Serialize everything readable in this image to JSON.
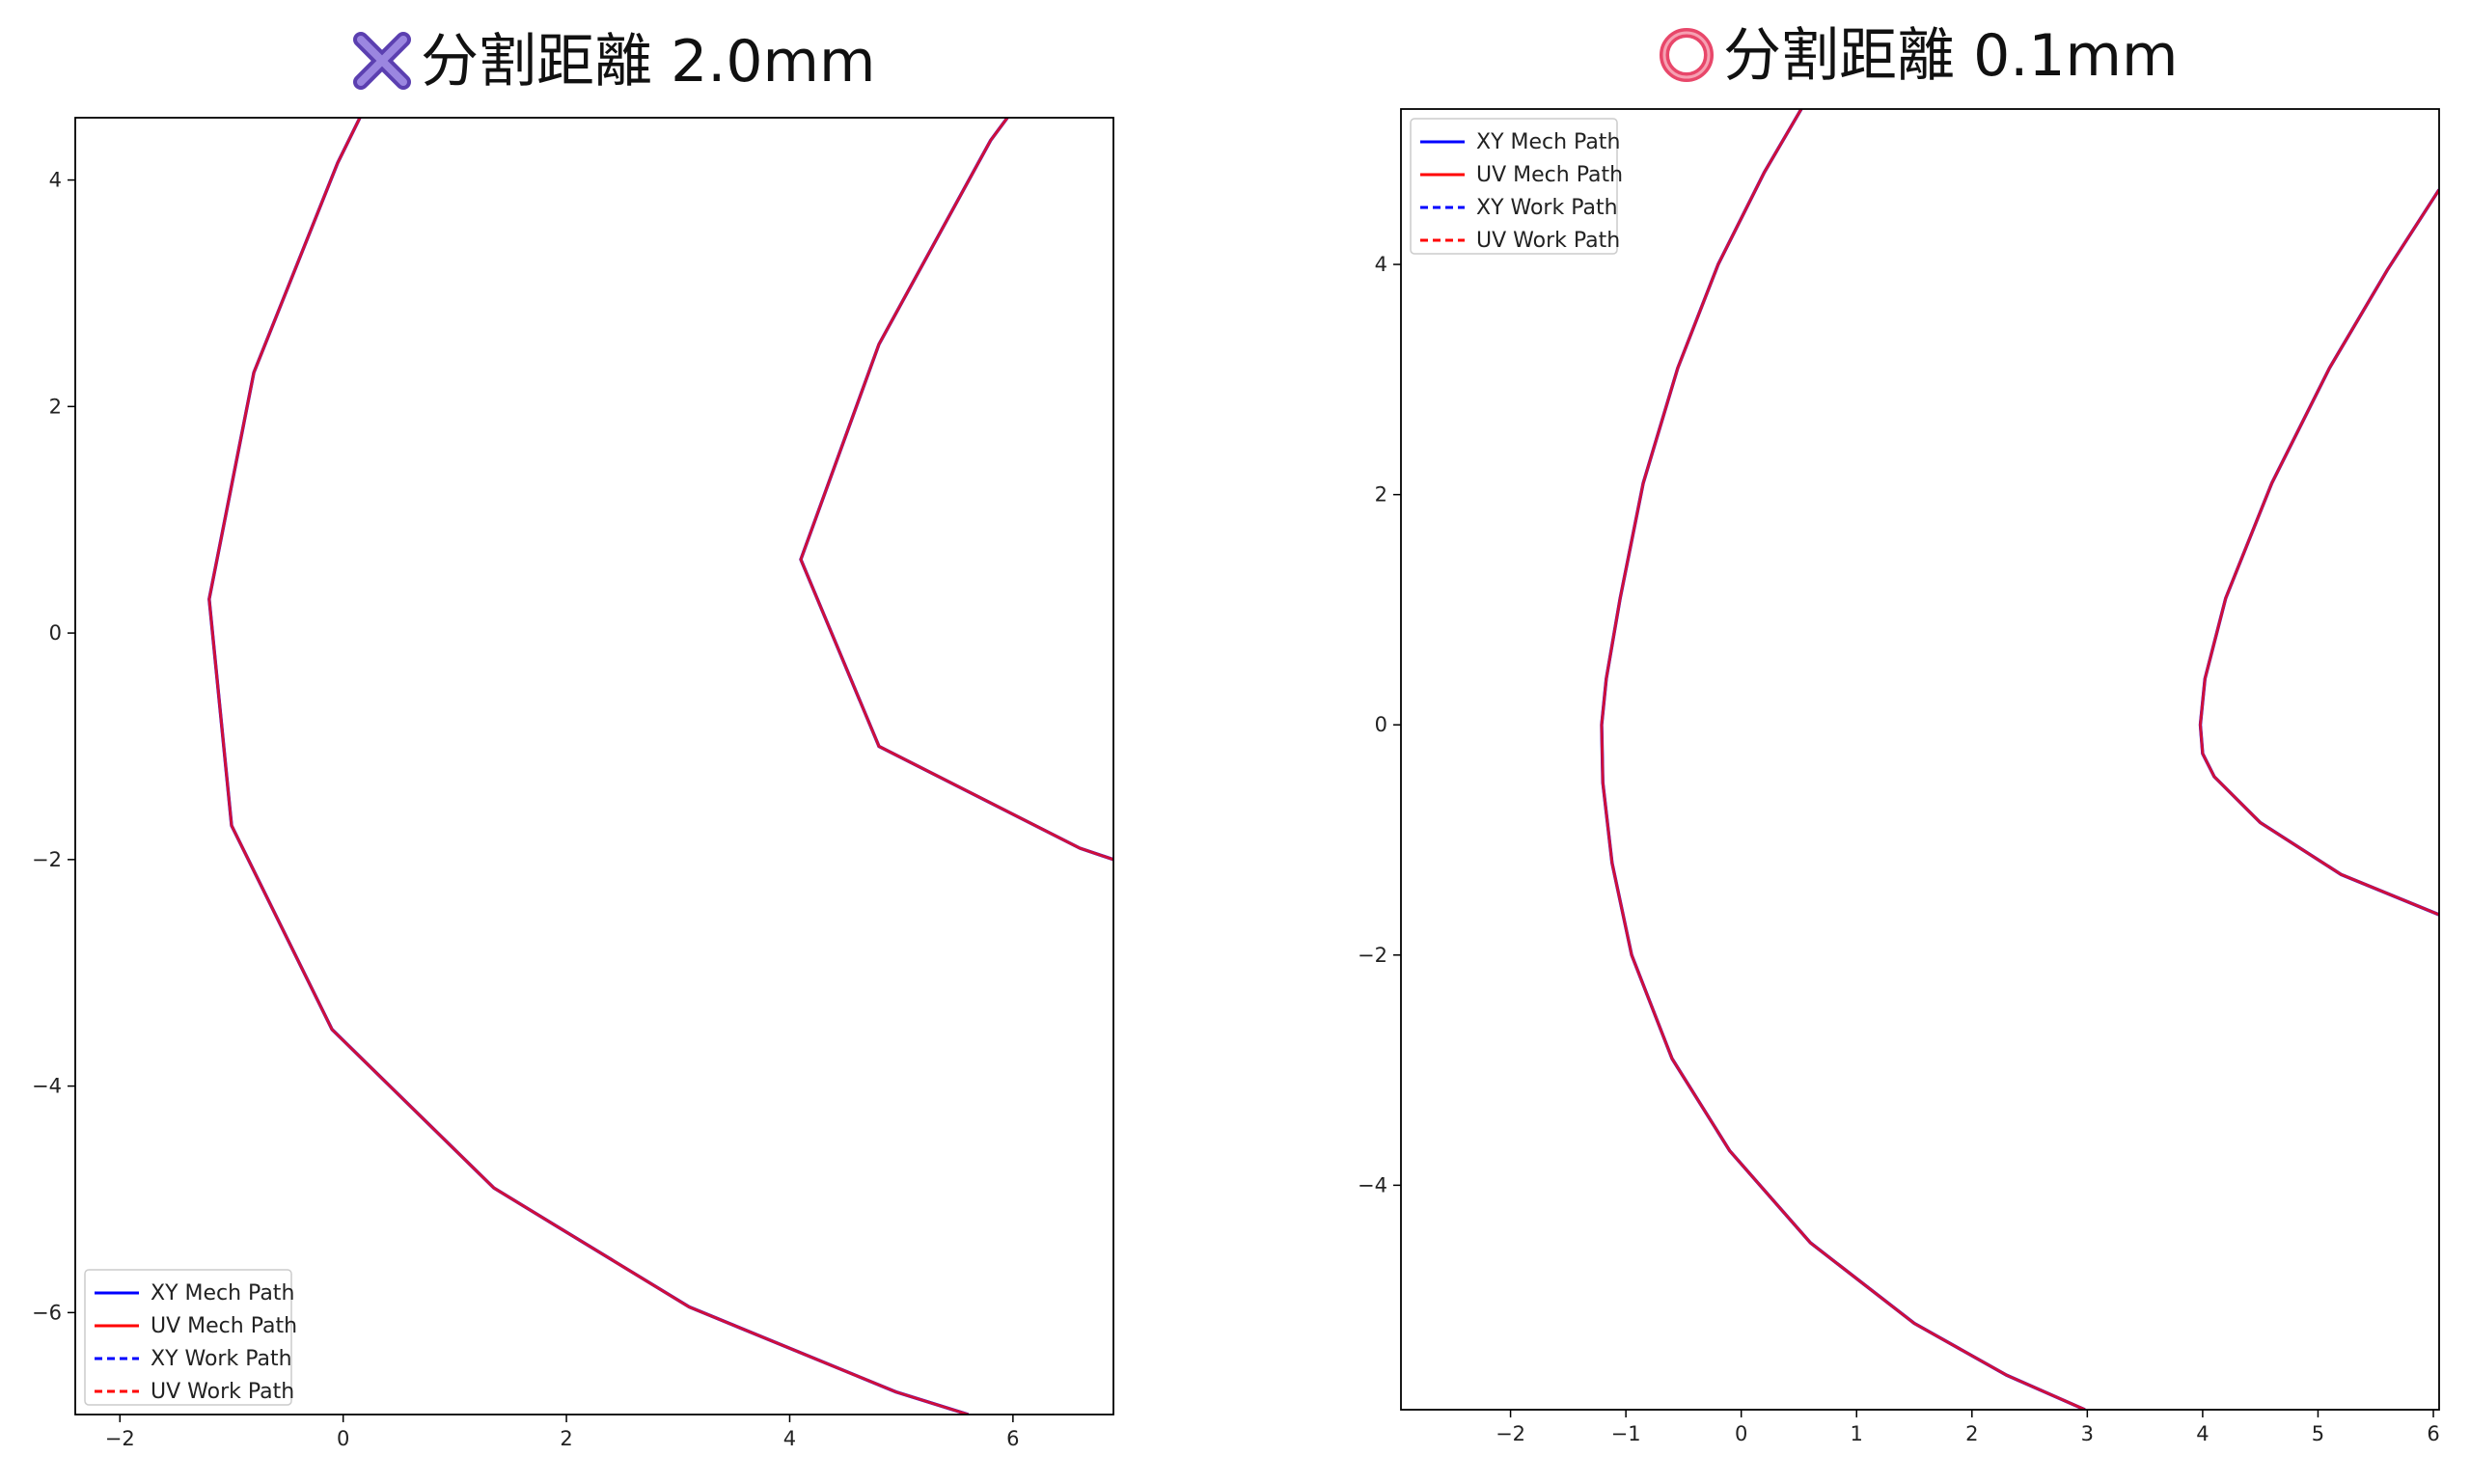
{
  "panels": [
    {
      "title": "分割距離 2.0mm",
      "title_icon": "cross-mark-icon",
      "icon_color": "#7a5cc4",
      "chart_data": {
        "type": "line",
        "xlim": [
          -2.4,
          6.9
        ],
        "ylim": [
          -6.9,
          4.55
        ],
        "xticks": [
          -2,
          0,
          2,
          4,
          6
        ],
        "yticks": [
          4,
          2,
          0,
          -2,
          -4,
          -6
        ],
        "grid": false,
        "legend_position": "lower-left",
        "legend": [
          "XY Mech Path",
          "UV Mech Path",
          "XY Work Path",
          "UV Work Path"
        ],
        "series": [
          {
            "color": "#0000ff",
            "style": "solid",
            "x": [
              0.15,
              -0.05,
              -0.8,
              -1.2,
              -1.0,
              -0.1,
              1.35,
              3.1,
              4.95,
              5.6
            ],
            "y": [
              4.55,
              4.15,
              2.3,
              0.3,
              -1.7,
              -3.5,
              -4.9,
              -5.95,
              -6.7,
              -6.9
            ]
          },
          {
            "color": "#0000ff",
            "style": "solid",
            "x": [
              5.95,
              5.8,
              4.8,
              4.1,
              4.8,
              6.6,
              6.9
            ],
            "y": [
              4.55,
              4.35,
              2.55,
              0.65,
              -1.0,
              -1.9,
              -2.0
            ]
          }
        ]
      }
    },
    {
      "title": "分割距離 0.1mm",
      "title_icon": "circle-mark-icon",
      "icon_color": "#e8476a",
      "chart_data": {
        "type": "line",
        "xlim": [
          -2.95,
          6.05
        ],
        "ylim": [
          -5.95,
          5.35
        ],
        "xticks": [
          -2,
          -1,
          0,
          1,
          2,
          3,
          4,
          5,
          6
        ],
        "yticks": [
          4,
          2,
          0,
          -2,
          -4
        ],
        "grid": false,
        "legend_position": "upper-left",
        "legend": [
          "XY Mech Path",
          "UV Mech Path",
          "XY Work Path",
          "UV Work Path"
        ],
        "series": [
          {
            "color": "#0000ff",
            "style": "solid",
            "x": [
              0.52,
              0.2,
              -0.2,
              -0.55,
              -0.85,
              -1.05,
              -1.17,
              -1.21,
              -1.2,
              -1.12,
              -0.95,
              -0.6,
              -0.1,
              0.6,
              1.5,
              2.3,
              2.98
            ],
            "y": [
              5.35,
              4.8,
              4.0,
              3.1,
              2.1,
              1.1,
              0.4,
              0.0,
              -0.5,
              -1.2,
              -2.0,
              -2.9,
              -3.7,
              -4.5,
              -5.2,
              -5.65,
              -5.95
            ]
          },
          {
            "color": "#0000ff",
            "style": "solid",
            "x": [
              6.05,
              5.6,
              5.1,
              4.6,
              4.2,
              4.02,
              3.98,
              4.0,
              4.1,
              4.5,
              5.2,
              6.05
            ],
            "y": [
              4.65,
              3.95,
              3.1,
              2.1,
              1.1,
              0.4,
              0.0,
              -0.25,
              -0.45,
              -0.85,
              -1.3,
              -1.65
            ]
          }
        ]
      }
    }
  ]
}
